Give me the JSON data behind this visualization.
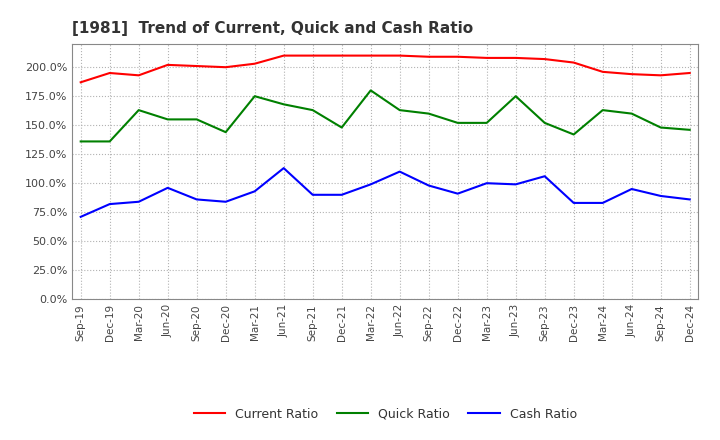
{
  "title": "[1981]  Trend of Current, Quick and Cash Ratio",
  "x_labels": [
    "Sep-19",
    "Dec-19",
    "Mar-20",
    "Jun-20",
    "Sep-20",
    "Dec-20",
    "Mar-21",
    "Jun-21",
    "Sep-21",
    "Dec-21",
    "Mar-22",
    "Jun-22",
    "Sep-22",
    "Dec-22",
    "Mar-23",
    "Jun-23",
    "Sep-23",
    "Dec-23",
    "Mar-24",
    "Jun-24",
    "Sep-24",
    "Dec-24"
  ],
  "current_ratio": [
    187,
    195,
    193,
    202,
    201,
    200,
    203,
    210,
    210,
    210,
    210,
    210,
    209,
    209,
    208,
    208,
    207,
    204,
    196,
    194,
    193,
    195
  ],
  "quick_ratio": [
    136,
    136,
    163,
    155,
    155,
    144,
    175,
    168,
    163,
    148,
    180,
    163,
    160,
    152,
    152,
    175,
    152,
    142,
    163,
    160,
    148,
    146
  ],
  "cash_ratio": [
    71,
    82,
    84,
    96,
    86,
    84,
    93,
    113,
    90,
    90,
    99,
    110,
    98,
    91,
    100,
    99,
    106,
    83,
    83,
    95,
    89,
    86
  ],
  "current_color": "#ff0000",
  "quick_color": "#008000",
  "cash_color": "#0000ff",
  "bg_color": "#ffffff",
  "plot_bg_color": "#ffffff",
  "grid_color": "#aaaaaa",
  "ylim": [
    0,
    220
  ],
  "yticks": [
    0,
    25,
    50,
    75,
    100,
    125,
    150,
    175,
    200
  ],
  "legend_labels": [
    "Current Ratio",
    "Quick Ratio",
    "Cash Ratio"
  ]
}
